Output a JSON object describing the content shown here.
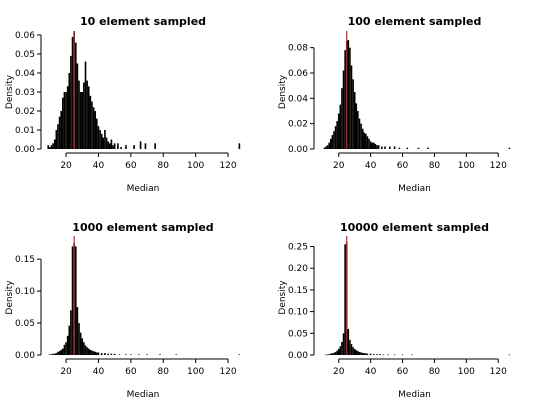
{
  "figure": {
    "background": "#ffffff",
    "bar_color": "#000000",
    "median_line_color": "#cc2222"
  },
  "chart_data": [
    {
      "type": "bar",
      "title": "10 element sampled",
      "xlabel": "Median",
      "ylabel": "Density",
      "xlim": [
        7,
        128
      ],
      "ylim": [
        0,
        0.06
      ],
      "xticks": [
        20,
        40,
        60,
        80,
        100,
        120
      ],
      "yticks": [
        0.0,
        0.01,
        0.02,
        0.03,
        0.04,
        0.05,
        0.06
      ],
      "ytick_labels": [
        "0.00",
        "0.01",
        "0.02",
        "0.03",
        "0.04",
        "0.05",
        "0.06"
      ],
      "median_line": 25,
      "bin_width": 1,
      "bins": [
        [
          9,
          0.002
        ],
        [
          10,
          0.001
        ],
        [
          11,
          0.002
        ],
        [
          12,
          0.003
        ],
        [
          13,
          0.005
        ],
        [
          14,
          0.01
        ],
        [
          15,
          0.013
        ],
        [
          16,
          0.017
        ],
        [
          17,
          0.02
        ],
        [
          18,
          0.027
        ],
        [
          19,
          0.03
        ],
        [
          20,
          0.03
        ],
        [
          21,
          0.033
        ],
        [
          22,
          0.04
        ],
        [
          23,
          0.049
        ],
        [
          24,
          0.059
        ],
        [
          25,
          0.062
        ],
        [
          26,
          0.056
        ],
        [
          27,
          0.045
        ],
        [
          28,
          0.036
        ],
        [
          29,
          0.03
        ],
        [
          30,
          0.03
        ],
        [
          31,
          0.035
        ],
        [
          32,
          0.046
        ],
        [
          33,
          0.036
        ],
        [
          34,
          0.033
        ],
        [
          35,
          0.028
        ],
        [
          36,
          0.025
        ],
        [
          37,
          0.022
        ],
        [
          38,
          0.02
        ],
        [
          39,
          0.016
        ],
        [
          40,
          0.012
        ],
        [
          41,
          0.01
        ],
        [
          42,
          0.008
        ],
        [
          43,
          0.006
        ],
        [
          44,
          0.01
        ],
        [
          45,
          0.006
        ],
        [
          46,
          0.004
        ],
        [
          47,
          0.003
        ],
        [
          48,
          0.005
        ],
        [
          49,
          0.002
        ],
        [
          50,
          0.003
        ],
        [
          52,
          0.003
        ],
        [
          54,
          0.001
        ],
        [
          57,
          0.002
        ],
        [
          62,
          0.002
        ],
        [
          66,
          0.004
        ],
        [
          69,
          0.003
        ],
        [
          75,
          0.003
        ],
        [
          127,
          0.003
        ]
      ]
    },
    {
      "type": "bar",
      "title": "100 element sampled",
      "xlabel": "Median",
      "ylabel": "Density",
      "xlim": [
        7,
        128
      ],
      "ylim": [
        0,
        0.09
      ],
      "xticks": [
        20,
        40,
        60,
        80,
        100,
        120
      ],
      "yticks": [
        0.0,
        0.02,
        0.04,
        0.06,
        0.08
      ],
      "ytick_labels": [
        "0.00",
        "0.02",
        "0.04",
        "0.06",
        "0.08"
      ],
      "median_line": 25,
      "bin_width": 1,
      "bins": [
        [
          11,
          0.001
        ],
        [
          12,
          0.002
        ],
        [
          13,
          0.003
        ],
        [
          14,
          0.005
        ],
        [
          15,
          0.008
        ],
        [
          16,
          0.011
        ],
        [
          17,
          0.014
        ],
        [
          18,
          0.018
        ],
        [
          19,
          0.022
        ],
        [
          20,
          0.028
        ],
        [
          21,
          0.035
        ],
        [
          22,
          0.048
        ],
        [
          23,
          0.062
        ],
        [
          24,
          0.078
        ],
        [
          25,
          0.085
        ],
        [
          26,
          0.086
        ],
        [
          27,
          0.08
        ],
        [
          28,
          0.066
        ],
        [
          29,
          0.055
        ],
        [
          30,
          0.045
        ],
        [
          31,
          0.036
        ],
        [
          32,
          0.03
        ],
        [
          33,
          0.024
        ],
        [
          34,
          0.02
        ],
        [
          35,
          0.016
        ],
        [
          36,
          0.013
        ],
        [
          37,
          0.012
        ],
        [
          38,
          0.01
        ],
        [
          39,
          0.008
        ],
        [
          40,
          0.006
        ],
        [
          41,
          0.005
        ],
        [
          42,
          0.005
        ],
        [
          43,
          0.004
        ],
        [
          44,
          0.003
        ],
        [
          45,
          0.003
        ],
        [
          47,
          0.002
        ],
        [
          49,
          0.002
        ],
        [
          52,
          0.002
        ],
        [
          55,
          0.002
        ],
        [
          58,
          0.001
        ],
        [
          63,
          0.001
        ],
        [
          70,
          0.001
        ],
        [
          76,
          0.001
        ],
        [
          127,
          0.001
        ]
      ]
    },
    {
      "type": "bar",
      "title": "1000 element sampled",
      "xlabel": "Median",
      "ylabel": "Density",
      "xlim": [
        7,
        128
      ],
      "ylim": [
        0,
        0.18
      ],
      "xticks": [
        20,
        40,
        60,
        80,
        100,
        120
      ],
      "yticks": [
        0.0,
        0.05,
        0.1,
        0.15
      ],
      "ytick_labels": [
        "0.00",
        "0.05",
        "0.10",
        "0.15"
      ],
      "median_line": 25,
      "bin_width": 1,
      "bins": [
        [
          10,
          0.001
        ],
        [
          11,
          0.001
        ],
        [
          12,
          0.002
        ],
        [
          13,
          0.002
        ],
        [
          14,
          0.003
        ],
        [
          15,
          0.005
        ],
        [
          16,
          0.006
        ],
        [
          17,
          0.008
        ],
        [
          18,
          0.01
        ],
        [
          19,
          0.016
        ],
        [
          20,
          0.02
        ],
        [
          21,
          0.03
        ],
        [
          22,
          0.046
        ],
        [
          23,
          0.07
        ],
        [
          24,
          0.17
        ],
        [
          25,
          0.175
        ],
        [
          26,
          0.17
        ],
        [
          27,
          0.075
        ],
        [
          28,
          0.05
        ],
        [
          29,
          0.035
        ],
        [
          30,
          0.026
        ],
        [
          31,
          0.02
        ],
        [
          32,
          0.015
        ],
        [
          33,
          0.012
        ],
        [
          34,
          0.01
        ],
        [
          35,
          0.008
        ],
        [
          36,
          0.007
        ],
        [
          37,
          0.006
        ],
        [
          38,
          0.005
        ],
        [
          39,
          0.004
        ],
        [
          40,
          0.004
        ],
        [
          42,
          0.003
        ],
        [
          44,
          0.003
        ],
        [
          46,
          0.002
        ],
        [
          48,
          0.002
        ],
        [
          50,
          0.002
        ],
        [
          53,
          0.001
        ],
        [
          57,
          0.001
        ],
        [
          60,
          0.001
        ],
        [
          65,
          0.001
        ],
        [
          70,
          0.001
        ],
        [
          78,
          0.001
        ],
        [
          88,
          0.001
        ],
        [
          127,
          0.001
        ]
      ]
    },
    {
      "type": "bar",
      "title": "10000 element sampled",
      "xlabel": "Median",
      "ylabel": "Density",
      "xlim": [
        7,
        128
      ],
      "ylim": [
        0,
        0.265
      ],
      "xticks": [
        20,
        40,
        60,
        80,
        100,
        120
      ],
      "yticks": [
        0.0,
        0.05,
        0.1,
        0.15,
        0.2,
        0.25
      ],
      "ytick_labels": [
        "0.00",
        "0.05",
        "0.10",
        "0.15",
        "0.20",
        "0.25"
      ],
      "median_line": 25,
      "bin_width": 1,
      "bins": [
        [
          12,
          0.001
        ],
        [
          13,
          0.001
        ],
        [
          14,
          0.002
        ],
        [
          15,
          0.003
        ],
        [
          16,
          0.004
        ],
        [
          17,
          0.005
        ],
        [
          18,
          0.007
        ],
        [
          19,
          0.01
        ],
        [
          20,
          0.014
        ],
        [
          21,
          0.02
        ],
        [
          22,
          0.03
        ],
        [
          23,
          0.05
        ],
        [
          24,
          0.255
        ],
        [
          25,
          0.26
        ],
        [
          26,
          0.06
        ],
        [
          27,
          0.035
        ],
        [
          28,
          0.025
        ],
        [
          29,
          0.018
        ],
        [
          30,
          0.014
        ],
        [
          31,
          0.011
        ],
        [
          32,
          0.009
        ],
        [
          33,
          0.007
        ],
        [
          34,
          0.006
        ],
        [
          35,
          0.005
        ],
        [
          36,
          0.004
        ],
        [
          37,
          0.004
        ],
        [
          38,
          0.003
        ],
        [
          40,
          0.003
        ],
        [
          42,
          0.002
        ],
        [
          44,
          0.002
        ],
        [
          46,
          0.002
        ],
        [
          48,
          0.001
        ],
        [
          51,
          0.001
        ],
        [
          55,
          0.001
        ],
        [
          60,
          0.001
        ],
        [
          66,
          0.001
        ],
        [
          127,
          0.001
        ]
      ]
    }
  ]
}
